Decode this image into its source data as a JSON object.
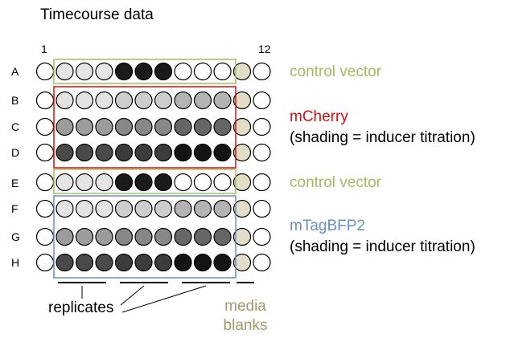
{
  "title": "Timecourse data",
  "columns": {
    "first": "1",
    "last": "12"
  },
  "rows": [
    "A",
    "B",
    "C",
    "D",
    "E",
    "F",
    "G",
    "H"
  ],
  "colors": {
    "control": "#a3bc5f",
    "mcherry": "#d40e0e",
    "mtagbfp2": "#6b8ec6",
    "media": "#a39a6c",
    "blank_fill": "#e2ddc6"
  },
  "plate_fills": [
    [
      "#ffffff",
      "#e5e5e5",
      "#e5e5e5",
      "#e5e5e5",
      "#1a1a1a",
      "#1a1a1a",
      "#1a1a1a",
      "#ffffff",
      "#ffffff",
      "#ffffff",
      "#e2ddc6",
      "#ffffff"
    ],
    [
      "#ffffff",
      "#e3e3e3",
      "#e3e3e3",
      "#e3e3e3",
      "#cdcdcd",
      "#cdcdcd",
      "#cdcdcd",
      "#b3b3b3",
      "#b3b3b3",
      "#b3b3b3",
      "#e2ddc6",
      "#ffffff"
    ],
    [
      "#ffffff",
      "#9c9c9c",
      "#9c9c9c",
      "#9c9c9c",
      "#878787",
      "#878787",
      "#878787",
      "#666666",
      "#666666",
      "#666666",
      "#e2ddc6",
      "#ffffff"
    ],
    [
      "#ffffff",
      "#4a4a4a",
      "#4a4a4a",
      "#4a4a4a",
      "#3c3c3c",
      "#3c3c3c",
      "#3c3c3c",
      "#141414",
      "#141414",
      "#141414",
      "#e2ddc6",
      "#ffffff"
    ],
    [
      "#ffffff",
      "#e5e5e5",
      "#e5e5e5",
      "#e5e5e5",
      "#1a1a1a",
      "#1a1a1a",
      "#1a1a1a",
      "#ffffff",
      "#ffffff",
      "#ffffff",
      "#e2ddc6",
      "#ffffff"
    ],
    [
      "#ffffff",
      "#e3e3e3",
      "#e3e3e3",
      "#e3e3e3",
      "#cdcdcd",
      "#cdcdcd",
      "#cdcdcd",
      "#b3b3b3",
      "#b3b3b3",
      "#b3b3b3",
      "#e2ddc6",
      "#ffffff"
    ],
    [
      "#ffffff",
      "#9c9c9c",
      "#9c9c9c",
      "#9c9c9c",
      "#878787",
      "#878787",
      "#878787",
      "#666666",
      "#666666",
      "#666666",
      "#e2ddc6",
      "#ffffff"
    ],
    [
      "#ffffff",
      "#4a4a4a",
      "#4a4a4a",
      "#4a4a4a",
      "#3c3c3c",
      "#3c3c3c",
      "#3c3c3c",
      "#141414",
      "#141414",
      "#141414",
      "#e2ddc6",
      "#ffffff"
    ]
  ],
  "labels": {
    "control_a": "control vector",
    "mcherry": "mCherry",
    "shading_1": "(shading = inducer titration)",
    "control_e": "control vector",
    "mtagbfp2": "mTagBFP2",
    "shading_2": "(shading = inducer titration)",
    "replicates": "replicates",
    "media_line1": "media",
    "media_line2": "blanks"
  }
}
